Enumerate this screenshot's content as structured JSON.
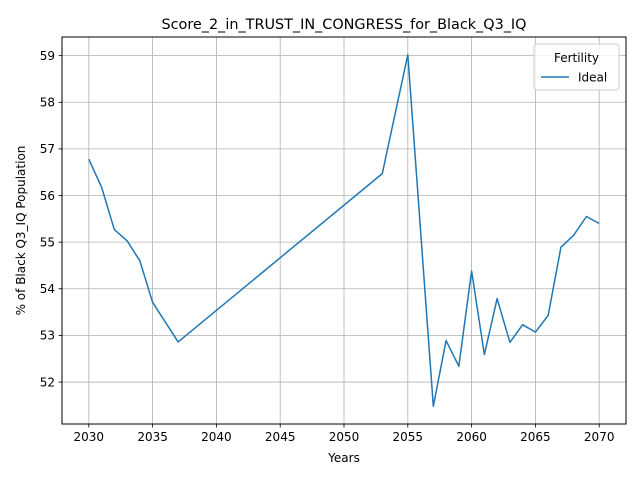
{
  "chart_data": {
    "type": "line",
    "title": "Score_2_in_TRUST_IN_CONGRESS_for_Black_Q3_IQ",
    "xlabel": "Years",
    "ylabel": "% of Black Q3_IQ Population",
    "xlim": [
      2027.9,
      2072.1
    ],
    "ylim": [
      51.1,
      59.4
    ],
    "xticks": [
      2030,
      2035,
      2040,
      2045,
      2050,
      2055,
      2060,
      2065,
      2070
    ],
    "yticks": [
      52,
      53,
      54,
      55,
      56,
      57,
      58,
      59
    ],
    "grid": true,
    "legend": {
      "title": "Fertility",
      "position": "top-right"
    },
    "series": [
      {
        "name": "Ideal",
        "color": "#1f77b4",
        "points": [
          [
            2030,
            56.78
          ],
          [
            2031,
            56.18
          ],
          [
            2032,
            55.27
          ],
          [
            2033,
            55.03
          ],
          [
            2034,
            54.6
          ],
          [
            2035,
            53.71
          ],
          [
            2037,
            52.86
          ],
          [
            2053,
            56.47
          ],
          [
            2055,
            59.02
          ],
          [
            2057,
            51.48
          ],
          [
            2058,
            52.89
          ],
          [
            2059,
            52.34
          ],
          [
            2060,
            54.38
          ],
          [
            2061,
            52.59
          ],
          [
            2062,
            53.79
          ],
          [
            2063,
            52.85
          ],
          [
            2064,
            53.23
          ],
          [
            2065,
            53.07
          ],
          [
            2066,
            53.43
          ],
          [
            2067,
            54.89
          ],
          [
            2068,
            55.15
          ],
          [
            2069,
            55.55
          ],
          [
            2070,
            55.4
          ]
        ]
      }
    ]
  }
}
